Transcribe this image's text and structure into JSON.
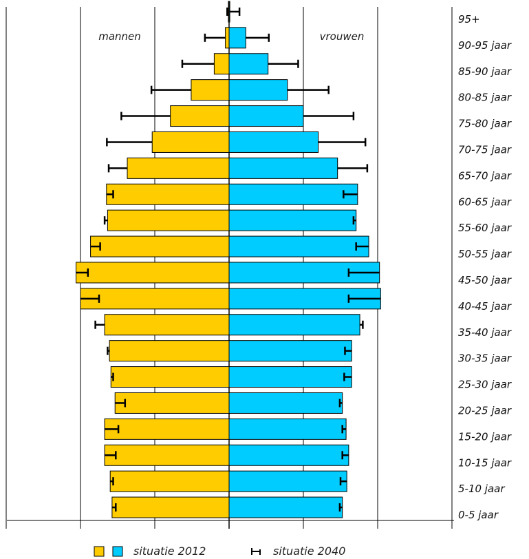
{
  "chart_data": {
    "type": "bar",
    "categories": [
      "0-5 jaar",
      "5-10 jaar",
      "10-15 jaar",
      "15-20 jaar",
      "20-25 jaar",
      "25-30 jaar",
      "30-35 jaar",
      "35-40 jaar",
      "40-45 jaar",
      "45-50 jaar",
      "50-55 jaar",
      "55-60 jaar",
      "60-65 jaar",
      "65-70 jaar",
      "70-75 jaar",
      "75-80 jaar",
      "80-85 jaar",
      "85-90 jaar",
      "90-95 jaar",
      "95+"
    ],
    "series": [
      {
        "name": "mannen",
        "values_2012": [
          3.15,
          3.2,
          3.35,
          3.35,
          3.07,
          3.18,
          3.22,
          3.35,
          4.0,
          4.12,
          3.73,
          3.27,
          3.3,
          2.74,
          2.07,
          1.58,
          1.02,
          0.4,
          0.1,
          0.02
        ],
        "values_2040": [
          3.05,
          3.12,
          3.05,
          2.98,
          2.8,
          3.12,
          3.27,
          3.6,
          3.5,
          3.8,
          3.47,
          3.35,
          3.12,
          3.24,
          3.29,
          2.9,
          2.09,
          1.26,
          0.65,
          0.05
        ]
      },
      {
        "name": "vrouwen",
        "values_2012": [
          3.05,
          3.17,
          3.22,
          3.15,
          3.05,
          3.3,
          3.3,
          3.52,
          4.08,
          4.05,
          3.76,
          3.42,
          3.46,
          2.92,
          2.4,
          2.0,
          1.57,
          1.05,
          0.45,
          0.02
        ],
        "values_2040": [
          2.98,
          3.0,
          3.05,
          3.05,
          2.98,
          3.1,
          3.12,
          3.6,
          3.22,
          3.22,
          3.42,
          3.35,
          3.08,
          3.72,
          3.67,
          3.35,
          2.68,
          1.86,
          1.07,
          0.28
        ]
      }
    ],
    "colors": {
      "mannen_2012": "#FFCC00",
      "vrouwen_2012": "#00CCFF",
      "projection_2040": "#000000",
      "gridline": "#000000"
    },
    "xlim": [
      -6,
      6
    ],
    "gridlines_at": [
      -6,
      -4,
      -2,
      0,
      2,
      4,
      6
    ],
    "grid": true,
    "left_label": "mannen",
    "right_label": "vrouwen",
    "legend": {
      "position": "bottom",
      "bars_label": "situatie 2012",
      "projection_label": "situatie 2040"
    }
  }
}
